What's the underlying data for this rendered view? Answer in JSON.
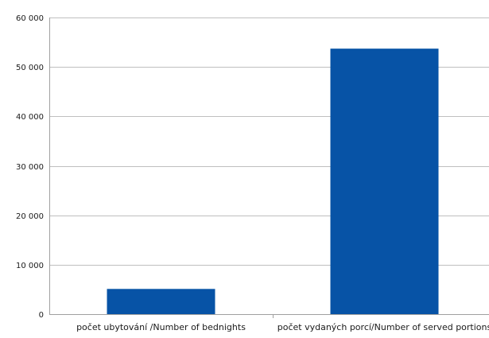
{
  "chart_data": {
    "type": "bar",
    "title": "",
    "xlabel": "",
    "ylabel": "",
    "categories": [
      "počet ubytování /Number of bednights",
      "počet vydaných porcí/Number of served portions"
    ],
    "values": [
      5100,
      53700
    ],
    "ylim": [
      0,
      60000
    ],
    "y_ticks": [
      0,
      10000,
      20000,
      30000,
      40000,
      50000,
      60000
    ],
    "y_tick_labels": [
      "0",
      "10 000",
      "20 000",
      "30 000",
      "40 000",
      "50 000",
      "60 000"
    ],
    "grid": true,
    "legend": "none",
    "bar_color": "#0753A6",
    "grid_color": "#bfbfbf",
    "axis_color": "#a0a0a0"
  }
}
